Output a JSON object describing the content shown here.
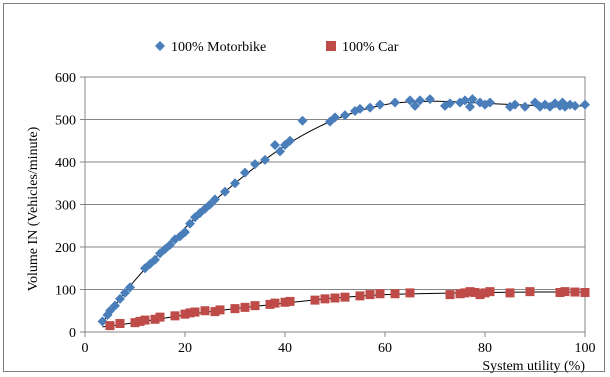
{
  "chart_data": {
    "type": "scatter",
    "xlabel": "System utility (%)",
    "ylabel": "Volume IN (Vehicles/minute)",
    "xlim": [
      0,
      100
    ],
    "ylim": [
      0,
      600
    ],
    "xticks": [
      0,
      20,
      40,
      60,
      80,
      100
    ],
    "yticks": [
      0,
      100,
      200,
      300,
      400,
      500,
      600
    ],
    "xtick_labels": [
      "0",
      "20",
      "40",
      "60",
      "80",
      "100"
    ],
    "ytick_labels": [
      "0",
      "100",
      "200",
      "300",
      "400",
      "500",
      "600"
    ],
    "grid": "horizontal",
    "legend_position": "top",
    "series": [
      {
        "name": "100% Motorbike",
        "marker": "diamond",
        "color": "#4a7ebb",
        "points": [
          [
            3.5,
            25
          ],
          [
            4.5,
            40
          ],
          [
            5,
            50
          ],
          [
            6,
            62
          ],
          [
            7,
            78
          ],
          [
            8,
            92
          ],
          [
            9,
            105
          ],
          [
            12,
            150
          ],
          [
            13,
            160
          ],
          [
            14,
            170
          ],
          [
            15,
            185
          ],
          [
            16,
            195
          ],
          [
            17,
            205
          ],
          [
            18,
            218
          ],
          [
            19,
            225
          ],
          [
            20,
            235
          ],
          [
            21,
            255
          ],
          [
            22,
            270
          ],
          [
            23,
            280
          ],
          [
            24,
            290
          ],
          [
            25,
            300
          ],
          [
            26,
            312
          ],
          [
            28,
            330
          ],
          [
            30,
            350
          ],
          [
            32,
            375
          ],
          [
            34,
            395
          ],
          [
            36,
            405
          ],
          [
            38,
            440
          ],
          [
            39,
            425
          ],
          [
            40,
            440
          ],
          [
            41,
            450
          ],
          [
            43.5,
            497
          ],
          [
            49,
            495
          ],
          [
            50,
            505
          ],
          [
            52,
            510
          ],
          [
            54,
            520
          ],
          [
            55,
            525
          ],
          [
            57,
            528
          ],
          [
            59,
            535
          ],
          [
            62,
            540
          ],
          [
            65,
            545
          ],
          [
            66,
            532
          ],
          [
            67,
            545
          ],
          [
            69,
            548
          ],
          [
            72,
            532
          ],
          [
            73,
            538
          ],
          [
            75,
            540
          ],
          [
            76,
            545
          ],
          [
            77,
            530
          ],
          [
            77.5,
            548
          ],
          [
            79,
            540
          ],
          [
            80,
            535
          ],
          [
            81,
            540
          ],
          [
            85,
            530
          ],
          [
            86,
            535
          ],
          [
            88,
            530
          ],
          [
            90,
            540
          ],
          [
            91,
            530
          ],
          [
            92,
            535
          ],
          [
            93,
            530
          ],
          [
            94,
            538
          ],
          [
            95,
            532
          ],
          [
            95.5,
            540
          ],
          [
            96,
            530
          ],
          [
            97,
            535
          ],
          [
            98,
            532
          ],
          [
            100,
            535
          ]
        ]
      },
      {
        "name": "100% Car",
        "marker": "square",
        "color": "#be4b48",
        "points": [
          [
            5,
            15
          ],
          [
            7,
            20
          ],
          [
            10,
            22
          ],
          [
            11,
            25
          ],
          [
            12,
            28
          ],
          [
            14,
            30
          ],
          [
            15,
            35
          ],
          [
            18,
            38
          ],
          [
            20,
            42
          ],
          [
            21,
            45
          ],
          [
            22,
            47
          ],
          [
            24,
            50
          ],
          [
            26,
            48
          ],
          [
            27,
            52
          ],
          [
            30,
            55
          ],
          [
            32,
            58
          ],
          [
            34,
            62
          ],
          [
            37,
            65
          ],
          [
            38,
            68
          ],
          [
            40,
            70
          ],
          [
            41,
            72
          ],
          [
            46,
            75
          ],
          [
            48,
            78
          ],
          [
            50,
            80
          ],
          [
            52,
            82
          ],
          [
            55,
            85
          ],
          [
            57,
            88
          ],
          [
            59,
            90
          ],
          [
            62,
            90
          ],
          [
            65,
            92
          ],
          [
            73,
            88
          ],
          [
            75,
            90
          ],
          [
            76,
            92
          ],
          [
            77,
            95
          ],
          [
            78,
            93
          ],
          [
            79,
            88
          ],
          [
            80,
            92
          ],
          [
            81,
            95
          ],
          [
            85,
            92
          ],
          [
            89,
            95
          ],
          [
            95,
            93
          ],
          [
            96,
            95
          ],
          [
            98,
            94
          ],
          [
            100,
            93
          ]
        ]
      }
    ],
    "trendlines": [
      {
        "series": "100% Motorbike",
        "points": [
          [
            3.5,
            22
          ],
          [
            10,
            122
          ],
          [
            20,
            245
          ],
          [
            30,
            350
          ],
          [
            40,
            438
          ],
          [
            50,
            500
          ],
          [
            60,
            535
          ],
          [
            70,
            543
          ],
          [
            80,
            538
          ],
          [
            90,
            533
          ],
          [
            100,
            532
          ]
        ]
      },
      {
        "series": "100% Car",
        "points": [
          [
            3.5,
            12
          ],
          [
            10,
            22
          ],
          [
            20,
            40
          ],
          [
            30,
            55
          ],
          [
            40,
            68
          ],
          [
            50,
            80
          ],
          [
            60,
            88
          ],
          [
            70,
            91
          ],
          [
            80,
            93
          ],
          [
            90,
            94
          ],
          [
            100,
            94
          ]
        ]
      }
    ]
  }
}
